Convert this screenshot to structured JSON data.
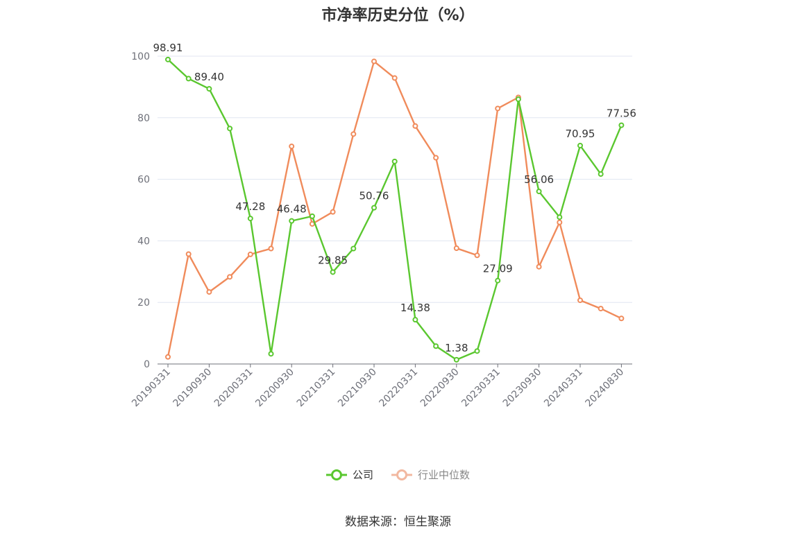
{
  "title": "市净率历史分位（%）",
  "source": "数据来源：恒生聚源",
  "colors": {
    "company": "#5ac72f",
    "industry": "#f08b5b",
    "axis": "#6e7079",
    "grid": "#e0e6f1"
  },
  "legend": [
    {
      "name": "公司",
      "color": "#5ac72f"
    },
    {
      "name": "行业中位数",
      "color": "#f2b8a0"
    }
  ],
  "chart_data": {
    "type": "line",
    "title": "市净率历史分位（%）",
    "x": [
      "20190331",
      "20190630",
      "20190930",
      "20191231",
      "20200331",
      "20200630",
      "20200930",
      "20201231",
      "20210331",
      "20210630",
      "20210930",
      "20211231",
      "20220331",
      "20220630",
      "20220930",
      "20221231",
      "20230331",
      "20230630",
      "20230930",
      "20231231",
      "20240331",
      "20240630",
      "20240830"
    ],
    "x_tick_labels": [
      "20190331",
      "20190930",
      "20200331",
      "20200930",
      "20210331",
      "20210930",
      "20220331",
      "20220930",
      "20230331",
      "20230930",
      "20240331",
      "20240830"
    ],
    "ylim": [
      0,
      100
    ],
    "yticks": [
      0,
      20,
      40,
      60,
      80,
      100
    ],
    "grid": true,
    "legend_position": "bottom",
    "series": [
      {
        "name": "公司",
        "values": [
          98.91,
          92.7,
          89.4,
          76.5,
          47.28,
          3.3,
          46.48,
          48.0,
          29.85,
          37.5,
          50.76,
          65.8,
          14.38,
          5.8,
          1.38,
          4.2,
          27.09,
          86.0,
          56.06,
          47.7,
          70.95,
          61.7,
          77.56
        ],
        "labeled": [
          {
            "index": 0,
            "text": "98.91"
          },
          {
            "index": 2,
            "text": "89.40"
          },
          {
            "index": 4,
            "text": "47.28"
          },
          {
            "index": 6,
            "text": "46.48"
          },
          {
            "index": 8,
            "text": "29.85"
          },
          {
            "index": 10,
            "text": "50.76"
          },
          {
            "index": 12,
            "text": "14.38"
          },
          {
            "index": 14,
            "text": "1.38"
          },
          {
            "index": 16,
            "text": "27.09"
          },
          {
            "index": 18,
            "text": "56.06"
          },
          {
            "index": 20,
            "text": "70.95"
          },
          {
            "index": 22,
            "text": "77.56"
          }
        ]
      },
      {
        "name": "行业中位数",
        "values": [
          2.3,
          35.7,
          23.4,
          28.3,
          35.6,
          37.5,
          70.7,
          45.5,
          49.4,
          74.7,
          98.3,
          92.9,
          77.3,
          67.0,
          37.6,
          35.3,
          83.0,
          86.6,
          31.6,
          46.0,
          20.7,
          18.0,
          14.8
        ],
        "labeled": []
      }
    ]
  }
}
